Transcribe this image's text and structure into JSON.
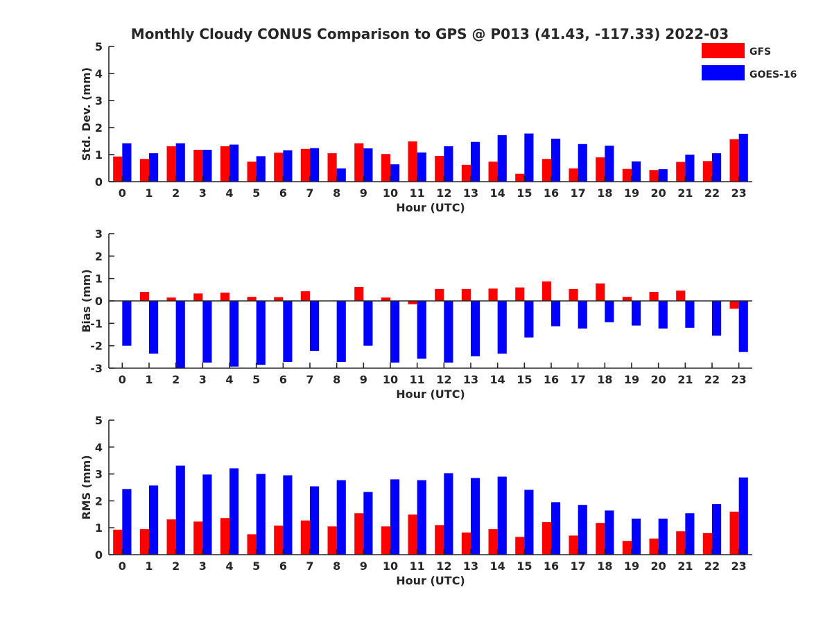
{
  "title": "Monthly Cloudy CONUS Comparison to GPS @ P013 (41.43, -117.33) 2022-03",
  "legend": [
    {
      "name": "GFS",
      "color": "#ff0000"
    },
    {
      "name": "GOES-16",
      "color": "#0000ff"
    }
  ],
  "chart_data": [
    {
      "type": "bar",
      "xlabel": "Hour (UTC)",
      "ylabel": "Std. Dev. (mm)",
      "ylim": [
        0,
        5
      ],
      "yticks": [
        0,
        1,
        2,
        3,
        4,
        5
      ],
      "categories": [
        "0",
        "1",
        "2",
        "3",
        "4",
        "5",
        "6",
        "7",
        "8",
        "9",
        "10",
        "11",
        "12",
        "13",
        "14",
        "15",
        "16",
        "17",
        "18",
        "19",
        "20",
        "21",
        "22",
        "23"
      ],
      "series": [
        {
          "name": "GFS",
          "color": "#ff0000",
          "values": [
            0.93,
            0.84,
            1.31,
            1.18,
            1.31,
            0.74,
            1.07,
            1.21,
            1.05,
            1.42,
            1.02,
            1.49,
            0.95,
            0.62,
            0.74,
            0.29,
            0.84,
            0.49,
            0.9,
            0.47,
            0.43,
            0.73,
            0.76,
            1.57
          ]
        },
        {
          "name": "GOES-16",
          "color": "#0000ff",
          "values": [
            1.42,
            1.05,
            1.42,
            1.18,
            1.37,
            0.94,
            1.16,
            1.24,
            0.49,
            1.23,
            0.64,
            1.08,
            1.31,
            1.47,
            1.72,
            1.78,
            1.59,
            1.39,
            1.33,
            0.75,
            0.46,
            1.0,
            1.05,
            1.77
          ]
        }
      ]
    },
    {
      "type": "bar",
      "xlabel": "Hour (UTC)",
      "ylabel": "Bias (mm)",
      "ylim": [
        -3,
        3
      ],
      "yticks": [
        -3,
        -2,
        -1,
        0,
        1,
        2,
        3
      ],
      "categories": [
        "0",
        "1",
        "2",
        "3",
        "4",
        "5",
        "6",
        "7",
        "8",
        "9",
        "10",
        "11",
        "12",
        "13",
        "14",
        "15",
        "16",
        "17",
        "18",
        "19",
        "20",
        "21",
        "22",
        "23"
      ],
      "series": [
        {
          "name": "GFS",
          "color": "#ff0000",
          "values": [
            0.0,
            0.4,
            0.15,
            0.33,
            0.37,
            0.18,
            0.17,
            0.43,
            0.0,
            0.62,
            0.15,
            -0.15,
            0.53,
            0.53,
            0.55,
            0.6,
            0.87,
            0.53,
            0.78,
            0.18,
            0.4,
            0.46,
            0.0,
            -0.35
          ]
        },
        {
          "name": "GOES-16",
          "color": "#0000ff",
          "values": [
            -2.0,
            -2.35,
            -3.0,
            -2.75,
            -2.93,
            -2.85,
            -2.72,
            -2.23,
            -2.72,
            -2.0,
            -2.75,
            -2.58,
            -2.75,
            -2.47,
            -2.35,
            -1.63,
            -1.13,
            -1.23,
            -0.95,
            -1.1,
            -1.23,
            -1.2,
            -1.55,
            -2.28
          ]
        }
      ]
    },
    {
      "type": "bar",
      "xlabel": "Hour (UTC)",
      "ylabel": "RMS (mm)",
      "ylim": [
        0,
        5
      ],
      "yticks": [
        0,
        1,
        2,
        3,
        4,
        5
      ],
      "categories": [
        "0",
        "1",
        "2",
        "3",
        "4",
        "5",
        "6",
        "7",
        "8",
        "9",
        "10",
        "11",
        "12",
        "13",
        "14",
        "15",
        "16",
        "17",
        "18",
        "19",
        "20",
        "21",
        "22",
        "23"
      ],
      "series": [
        {
          "name": "GFS",
          "color": "#ff0000",
          "values": [
            0.93,
            0.95,
            1.31,
            1.23,
            1.36,
            0.76,
            1.08,
            1.27,
            1.05,
            1.54,
            1.05,
            1.49,
            1.1,
            0.82,
            0.95,
            0.66,
            1.21,
            0.71,
            1.18,
            0.51,
            0.6,
            0.87,
            0.8,
            1.6
          ]
        },
        {
          "name": "GOES-16",
          "color": "#0000ff",
          "values": [
            2.44,
            2.57,
            3.31,
            2.98,
            3.21,
            3.0,
            2.95,
            2.54,
            2.77,
            2.33,
            2.8,
            2.77,
            3.03,
            2.85,
            2.9,
            2.41,
            1.95,
            1.85,
            1.64,
            1.34,
            1.34,
            1.54,
            1.88,
            2.87
          ]
        }
      ]
    }
  ]
}
